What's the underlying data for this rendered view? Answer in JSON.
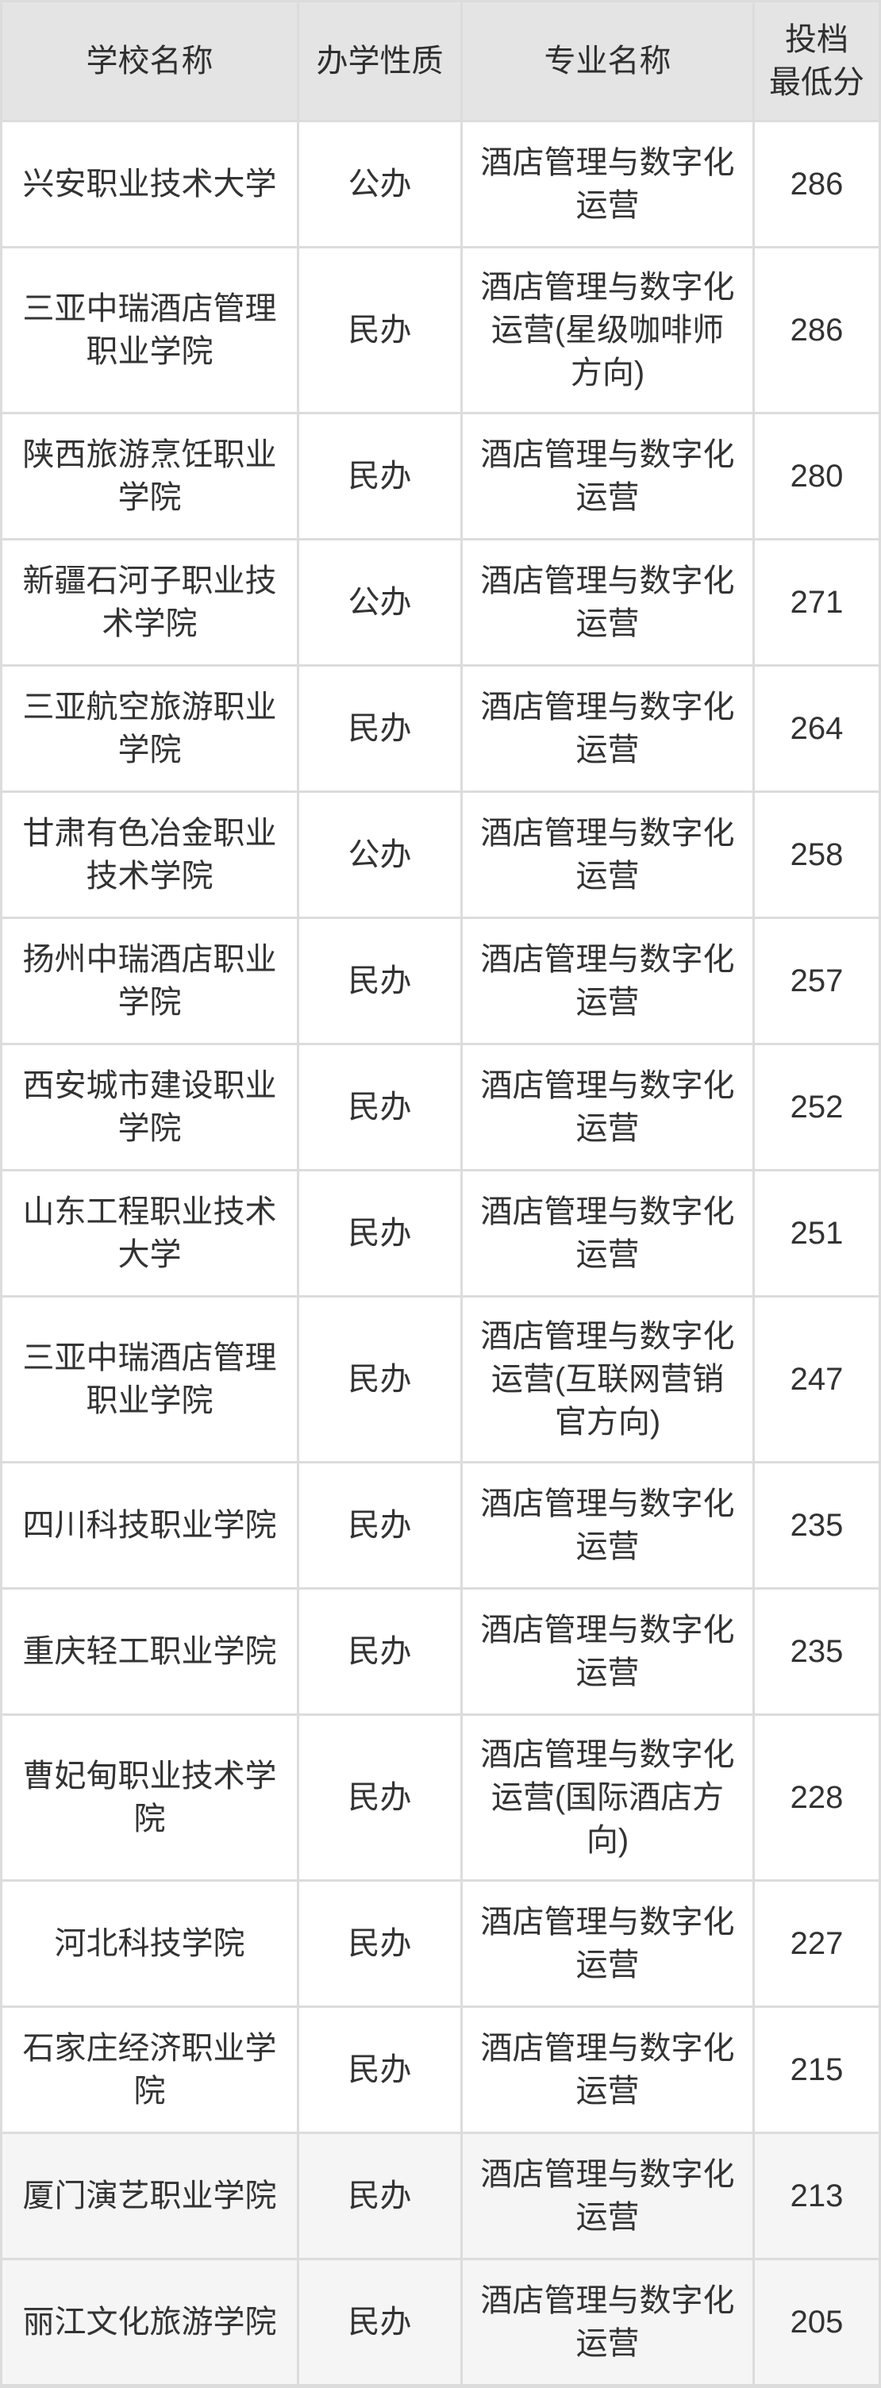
{
  "chart_data": {
    "type": "table",
    "columns": {
      "school": "学校名称",
      "type": "办学性质",
      "major": "专业名称",
      "score": "投档\n最低分"
    },
    "rows": [
      {
        "school": "兴安职业技术大学",
        "type": "公办",
        "major": "酒店管理与数字化运营",
        "score": "286"
      },
      {
        "school": "三亚中瑞酒店管理职业学院",
        "type": "民办",
        "major": "酒店管理与数字化运营(星级咖啡师方向)",
        "score": "286"
      },
      {
        "school": "陕西旅游烹饪职业学院",
        "type": "民办",
        "major": "酒店管理与数字化运营",
        "score": "280"
      },
      {
        "school": "新疆石河子职业技术学院",
        "type": "公办",
        "major": "酒店管理与数字化运营",
        "score": "271"
      },
      {
        "school": "三亚航空旅游职业学院",
        "type": "民办",
        "major": "酒店管理与数字化运营",
        "score": "264"
      },
      {
        "school": "甘肃有色冶金职业技术学院",
        "type": "公办",
        "major": "酒店管理与数字化运营",
        "score": "258"
      },
      {
        "school": "扬州中瑞酒店职业学院",
        "type": "民办",
        "major": "酒店管理与数字化运营",
        "score": "257"
      },
      {
        "school": "西安城市建设职业学院",
        "type": "民办",
        "major": "酒店管理与数字化运营",
        "score": "252"
      },
      {
        "school": "山东工程职业技术大学",
        "type": "民办",
        "major": "酒店管理与数字化运营",
        "score": "251"
      },
      {
        "school": "三亚中瑞酒店管理职业学院",
        "type": "民办",
        "major": "酒店管理与数字化运营(互联网营销官方向)",
        "score": "247"
      },
      {
        "school": "四川科技职业学院",
        "type": "民办",
        "major": "酒店管理与数字化运营",
        "score": "235"
      },
      {
        "school": "重庆轻工职业学院",
        "type": "民办",
        "major": "酒店管理与数字化运营",
        "score": "235"
      },
      {
        "school": "曹妃甸职业技术学院",
        "type": "民办",
        "major": "酒店管理与数字化运营(国际酒店方向)",
        "score": "228"
      },
      {
        "school": "河北科技学院",
        "type": "民办",
        "major": "酒店管理与数字化运营",
        "score": "227"
      },
      {
        "school": "石家庄经济职业学院",
        "type": "民办",
        "major": "酒店管理与数字化运营",
        "score": "215"
      },
      {
        "school": "厦门演艺职业学院",
        "type": "民办",
        "major": "酒店管理与数字化运营",
        "score": "213"
      },
      {
        "school": "丽江文化旅游学院",
        "type": "民办",
        "major": "酒店管理与数字化运营",
        "score": "205"
      }
    ],
    "layout": {
      "grid": "on",
      "header_background": "#e4e4e4",
      "grid_line_color": "#dcdcdc",
      "row_background": "#ffffff",
      "shaded_row_background": "#f5f5f5",
      "text_color": "#333333"
    }
  }
}
